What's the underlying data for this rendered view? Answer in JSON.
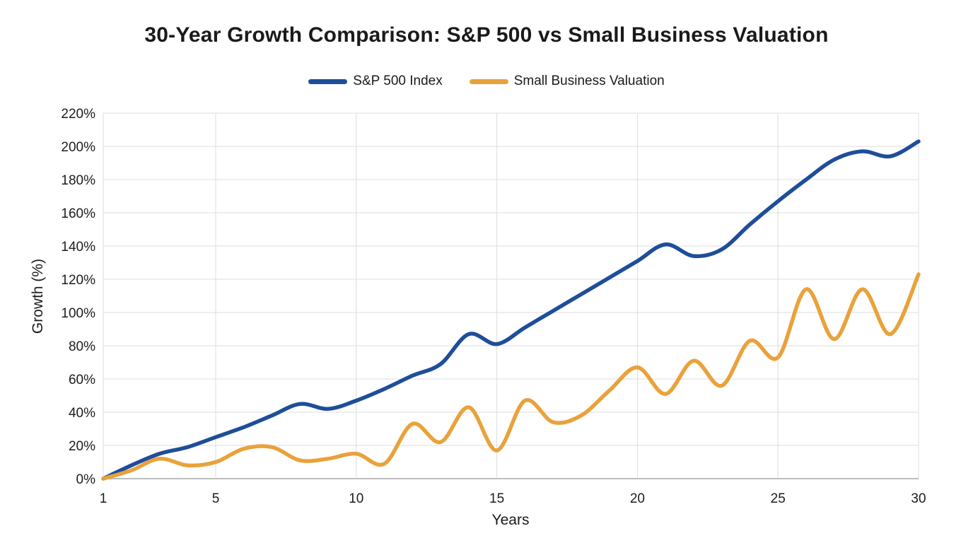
{
  "title": "30-Year Growth Comparison: S&P 500 vs Small Business Valuation",
  "legend": {
    "position": "top",
    "items": [
      "S&P 500 Index",
      "Small Business Valuation"
    ]
  },
  "chart_data": {
    "type": "line",
    "title": "30-Year Growth Comparison: S&P 500 vs Small Business Valuation",
    "xlabel": "Years",
    "ylabel": "Growth (%)",
    "x": [
      1,
      2,
      3,
      4,
      5,
      6,
      7,
      8,
      9,
      10,
      11,
      12,
      13,
      14,
      15,
      16,
      17,
      18,
      19,
      20,
      21,
      22,
      23,
      24,
      25,
      26,
      27,
      28,
      29,
      30
    ],
    "x_ticks": [
      1,
      5,
      10,
      15,
      20,
      25,
      30
    ],
    "x_tick_labels": [
      "1",
      "5",
      "10",
      "15",
      "20",
      "25",
      "30"
    ],
    "y_ticks": [
      0,
      20,
      40,
      60,
      80,
      100,
      120,
      140,
      160,
      180,
      200,
      220
    ],
    "y_tick_labels": [
      "0%",
      "20%",
      "40%",
      "60%",
      "80%",
      "100%",
      "120%",
      "140%",
      "160%",
      "180%",
      "200%",
      "220%"
    ],
    "xlim": [
      1,
      30
    ],
    "ylim": [
      0,
      220
    ],
    "grid": true,
    "line_smoothing": true,
    "series": [
      {
        "name": "S&P 500 Index",
        "color": "#1e4e9a",
        "values": [
          0,
          8,
          15,
          19,
          25,
          31,
          38,
          45,
          42,
          47,
          54,
          62,
          69,
          87,
          81,
          91,
          101,
          111,
          121,
          131,
          141,
          134,
          138,
          153,
          167,
          180,
          192,
          197,
          194,
          203
        ]
      },
      {
        "name": "Small Business Valuation",
        "color": "#e9a23b",
        "values": [
          0,
          5,
          12,
          8,
          10,
          18,
          19,
          11,
          12,
          15,
          9,
          33,
          22,
          43,
          17,
          47,
          34,
          38,
          53,
          67,
          51,
          71,
          56,
          83,
          73,
          114,
          84,
          114,
          87,
          123
        ]
      }
    ]
  }
}
